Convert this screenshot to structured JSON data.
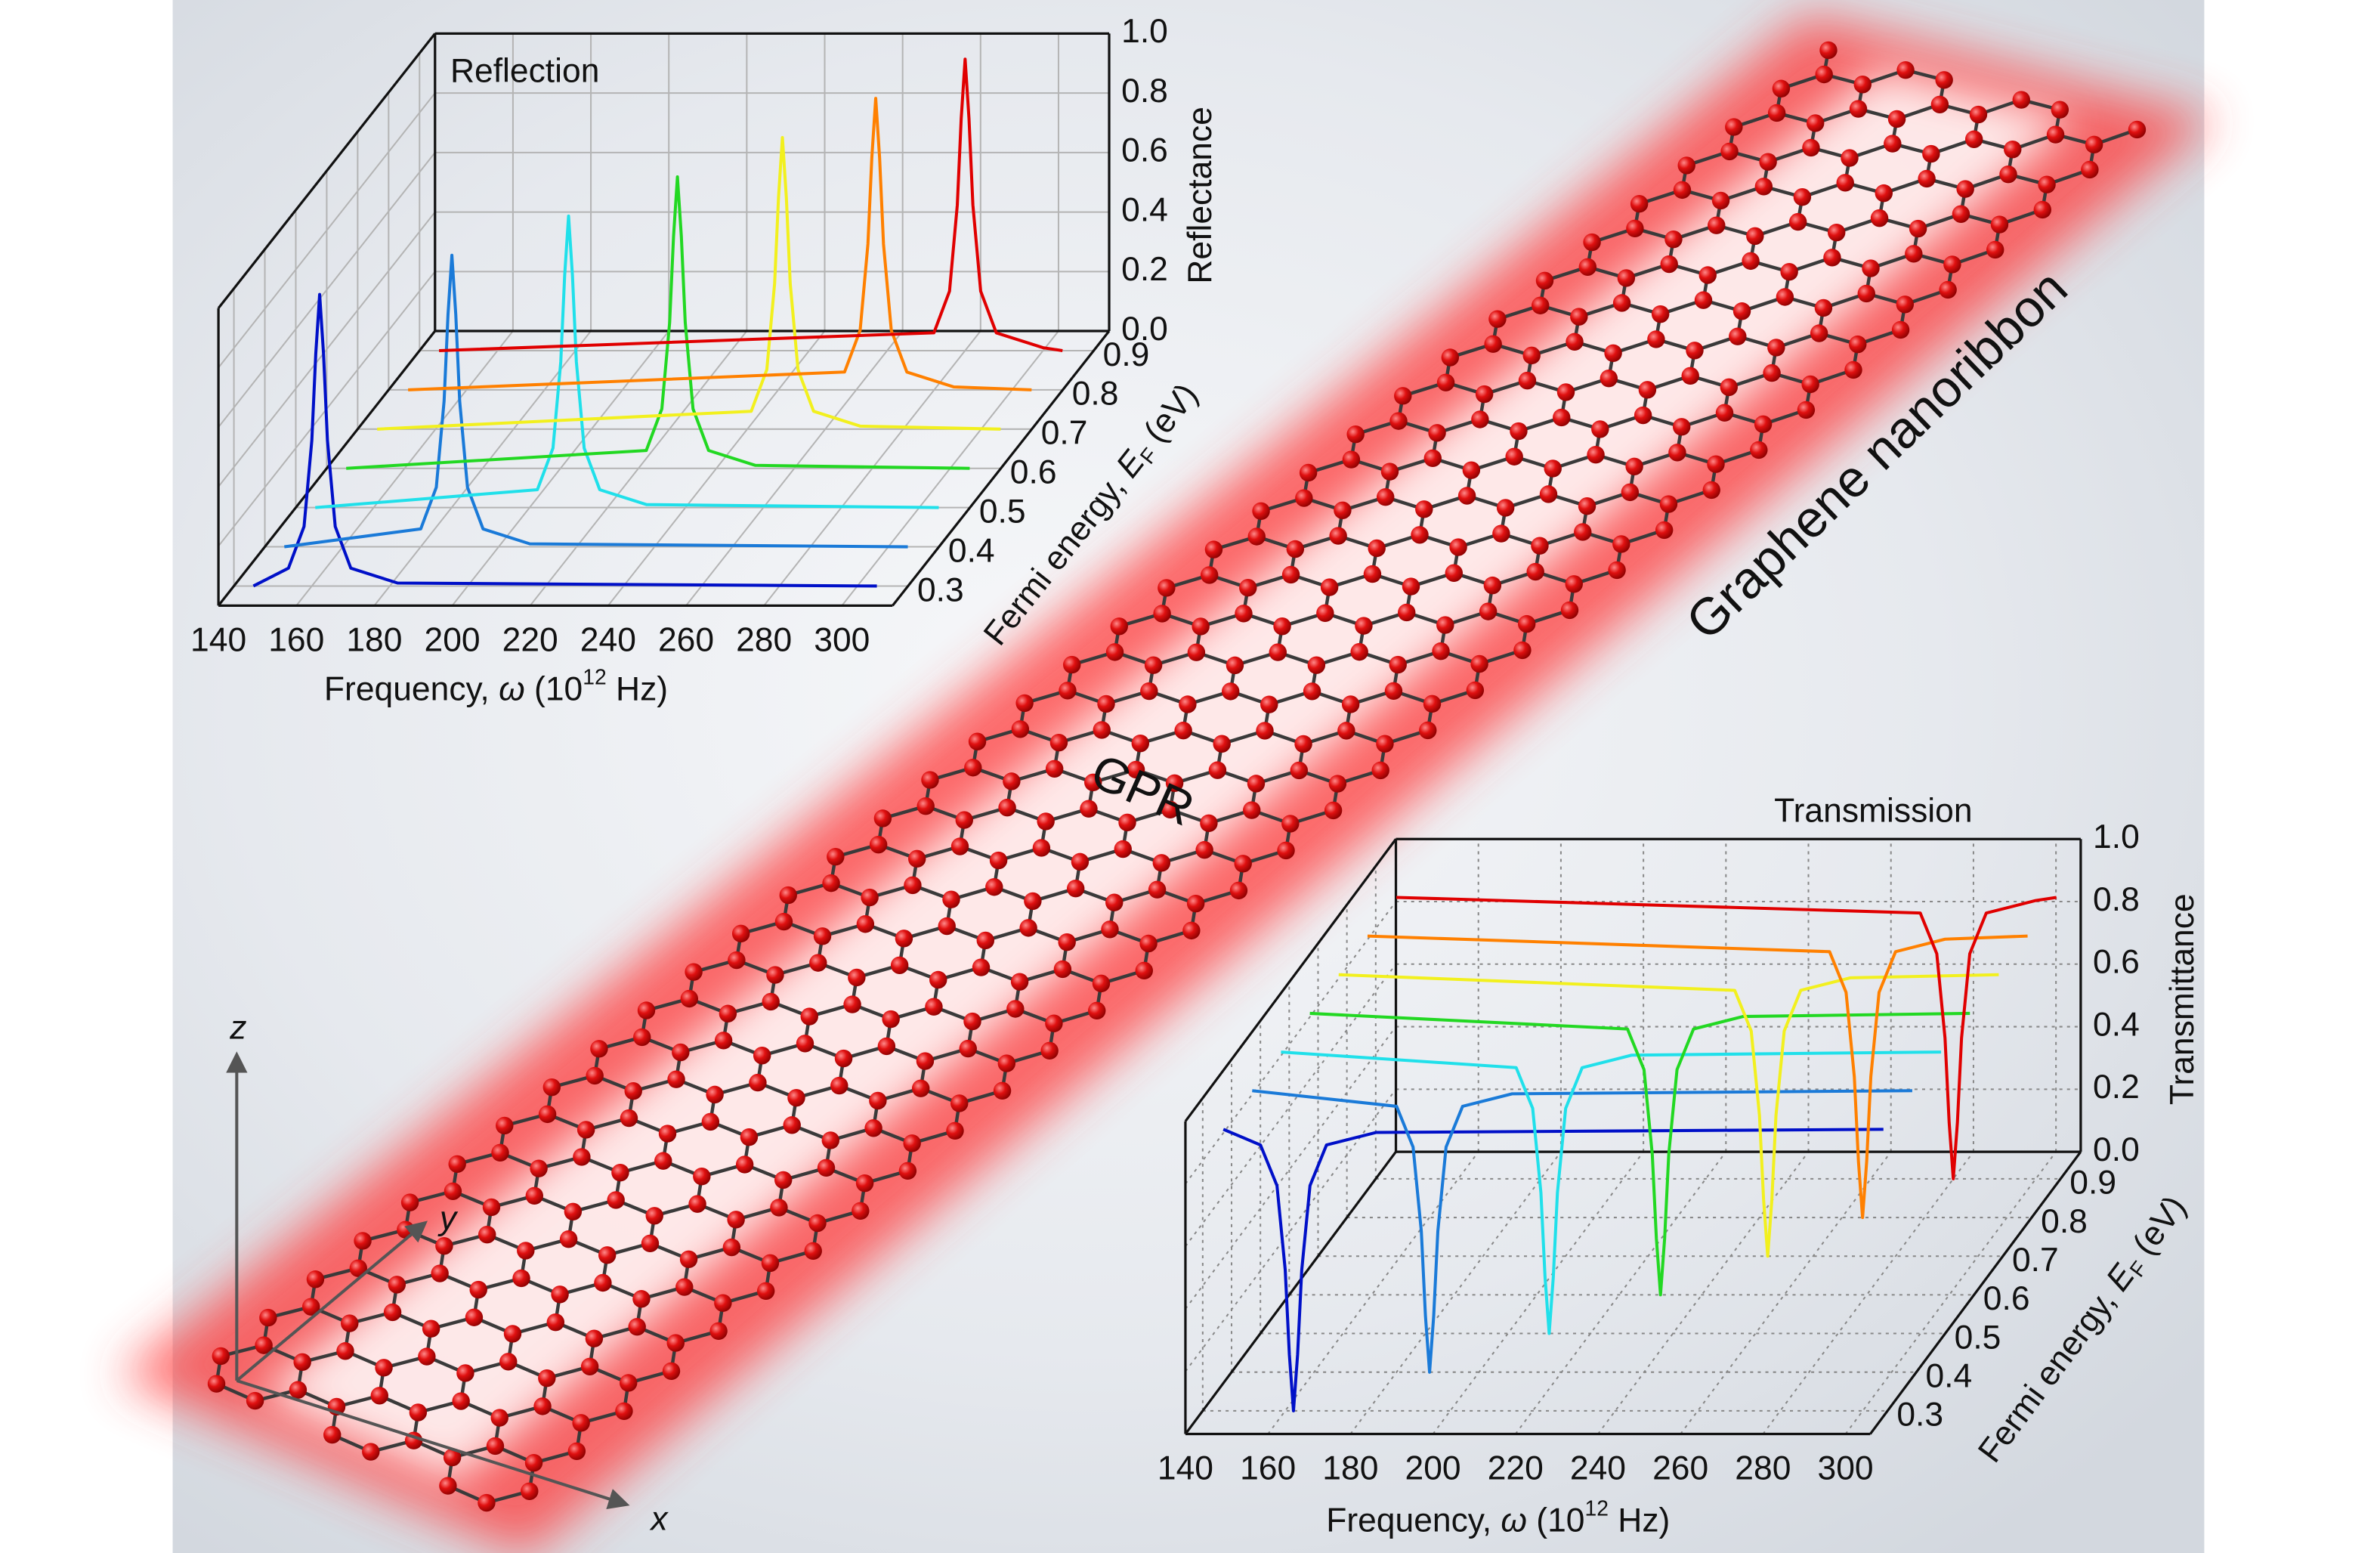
{
  "chart_data": [
    {
      "type": "waterfall3d",
      "title": "Reflection",
      "xlabel": [
        "Frequency, ",
        "ω",
        " (10",
        "12",
        " Hz)"
      ],
      "ylabel": [
        "Fermi energy, ",
        "E",
        "F",
        " (eV)"
      ],
      "zlabel": "Reflectance",
      "xlim": [
        140,
        313
      ],
      "xticks": [
        140,
        160,
        180,
        200,
        220,
        240,
        260,
        280,
        300
      ],
      "ylim": [
        0.25,
        0.95
      ],
      "yticks": [
        0.3,
        0.4,
        0.5,
        0.6,
        0.7,
        0.8,
        0.9
      ],
      "zlim": [
        0,
        1
      ],
      "zticks": [
        {
          "value": 0,
          "label": "0.0"
        },
        0.2,
        0.4,
        0.6,
        0.8,
        {
          "value": 1,
          "label": "1.0"
        }
      ],
      "grid": true,
      "series": [
        {
          "color": "#0010c8",
          "y": 0.3,
          "x": [
            145,
            154,
            158,
            160,
            161,
            162,
            163,
            164,
            166,
            170,
            182,
            305
          ],
          "values": [
            0.0,
            0.06,
            0.2,
            0.49,
            0.78,
            0.98,
            0.78,
            0.49,
            0.2,
            0.06,
            0.01,
            0.0
          ]
        },
        {
          "color": "#1a7ad8",
          "y": 0.4,
          "x": [
            145,
            180,
            184,
            186,
            187,
            188,
            189,
            190,
            192,
            196,
            208,
            305
          ],
          "values": [
            0.0,
            0.06,
            0.2,
            0.49,
            0.78,
            0.98,
            0.78,
            0.49,
            0.2,
            0.06,
            0.01,
            0.0
          ]
        },
        {
          "color": "#20e0ea",
          "y": 0.5,
          "x": [
            145,
            202,
            206,
            208,
            209,
            210,
            211,
            212,
            214,
            218,
            230,
            305
          ],
          "values": [
            0.0,
            0.06,
            0.2,
            0.49,
            0.78,
            0.98,
            0.78,
            0.49,
            0.2,
            0.06,
            0.01,
            0.0
          ]
        },
        {
          "color": "#22d822",
          "y": 0.6,
          "x": [
            145,
            222,
            226,
            228,
            229,
            230,
            231,
            232,
            234,
            238,
            250,
            305
          ],
          "values": [
            0.0,
            0.06,
            0.2,
            0.49,
            0.78,
            0.98,
            0.78,
            0.49,
            0.2,
            0.06,
            0.01,
            0.0
          ]
        },
        {
          "color": "#f2f01e",
          "y": 0.7,
          "x": [
            145,
            241,
            245,
            247,
            248,
            249,
            250,
            251,
            253,
            257,
            269,
            305
          ],
          "values": [
            0.0,
            0.06,
            0.2,
            0.49,
            0.78,
            0.98,
            0.78,
            0.49,
            0.2,
            0.06,
            0.01,
            0.0
          ]
        },
        {
          "color": "#ff8000",
          "y": 0.8,
          "x": [
            145,
            257,
            261,
            263,
            264,
            265,
            266,
            267,
            269,
            273,
            285,
            305
          ],
          "values": [
            0.0,
            0.06,
            0.2,
            0.49,
            0.78,
            0.98,
            0.78,
            0.49,
            0.2,
            0.06,
            0.01,
            0.0
          ]
        },
        {
          "color": "#e00000",
          "y": 0.9,
          "x": [
            145,
            272,
            276,
            278,
            279,
            280,
            281,
            282,
            284,
            288,
            300,
            305
          ],
          "values": [
            0.0,
            0.06,
            0.2,
            0.49,
            0.78,
            0.98,
            0.78,
            0.49,
            0.2,
            0.06,
            0.01,
            0.0
          ]
        }
      ]
    },
    {
      "type": "waterfall3d",
      "title": "Transmission",
      "xlabel": [
        "Frequency, ",
        "ω",
        " (10",
        "12",
        " Hz)"
      ],
      "ylabel": [
        "Fermi energy, ",
        "E",
        "F",
        " (eV)"
      ],
      "zlabel": "Transmittance",
      "xlim": [
        140,
        306
      ],
      "xticks": [
        140,
        160,
        180,
        200,
        220,
        240,
        260,
        280,
        300
      ],
      "ylim": [
        0.24,
        0.97
      ],
      "yticks": [
        0.3,
        0.4,
        0.5,
        0.6,
        0.7,
        0.8,
        0.9
      ],
      "zlim": [
        0,
        1
      ],
      "zticks": [
        {
          "value": 0,
          "label": "0.0"
        },
        0.2,
        0.4,
        0.6,
        0.8,
        {
          "value": 1,
          "label": "1.0"
        }
      ],
      "grid": true,
      "series": [
        {
          "color": "#0010c8",
          "y": 0.3,
          "x": [
            145,
            154,
            158,
            160,
            161,
            162,
            163,
            164,
            166,
            170,
            182,
            305
          ],
          "values": [
            0.9,
            0.85,
            0.72,
            0.45,
            0.18,
            0.0,
            0.18,
            0.45,
            0.72,
            0.85,
            0.89,
            0.9
          ]
        },
        {
          "color": "#1a7ad8",
          "y": 0.4,
          "x": [
            145,
            180,
            184,
            186,
            187,
            188,
            189,
            190,
            192,
            196,
            208,
            305
          ],
          "values": [
            0.9,
            0.85,
            0.72,
            0.45,
            0.18,
            0.0,
            0.18,
            0.45,
            0.72,
            0.85,
            0.89,
            0.9
          ]
        },
        {
          "color": "#20e0ea",
          "y": 0.5,
          "x": [
            145,
            202,
            206,
            208,
            209,
            210,
            211,
            212,
            214,
            218,
            230,
            305
          ],
          "values": [
            0.9,
            0.85,
            0.72,
            0.45,
            0.18,
            0.0,
            0.18,
            0.45,
            0.72,
            0.85,
            0.89,
            0.9
          ]
        },
        {
          "color": "#22d822",
          "y": 0.6,
          "x": [
            145,
            222,
            226,
            228,
            229,
            230,
            231,
            232,
            234,
            238,
            250,
            305
          ],
          "values": [
            0.9,
            0.85,
            0.72,
            0.45,
            0.18,
            0.0,
            0.18,
            0.45,
            0.72,
            0.85,
            0.89,
            0.9
          ]
        },
        {
          "color": "#f2f01e",
          "y": 0.7,
          "x": [
            145,
            241,
            245,
            247,
            248,
            249,
            250,
            251,
            253,
            257,
            269,
            305
          ],
          "values": [
            0.9,
            0.85,
            0.72,
            0.45,
            0.18,
            0.0,
            0.18,
            0.45,
            0.72,
            0.85,
            0.89,
            0.9
          ]
        },
        {
          "color": "#ff8000",
          "y": 0.8,
          "x": [
            145,
            257,
            261,
            263,
            264,
            265,
            266,
            267,
            269,
            273,
            285,
            305
          ],
          "values": [
            0.9,
            0.85,
            0.72,
            0.45,
            0.18,
            0.0,
            0.18,
            0.45,
            0.72,
            0.85,
            0.89,
            0.9
          ]
        },
        {
          "color": "#e00000",
          "y": 0.9,
          "x": [
            145,
            272,
            276,
            278,
            279,
            280,
            281,
            282,
            284,
            288,
            300,
            305
          ],
          "values": [
            0.9,
            0.85,
            0.72,
            0.45,
            0.18,
            0.0,
            0.18,
            0.45,
            0.72,
            0.85,
            0.89,
            0.9
          ]
        }
      ]
    }
  ],
  "illustration": {
    "ribbon_label": "Graphene nanoribbon",
    "region_label": "GPR",
    "axes": {
      "x": "x",
      "y": "y",
      "z": "z"
    }
  }
}
